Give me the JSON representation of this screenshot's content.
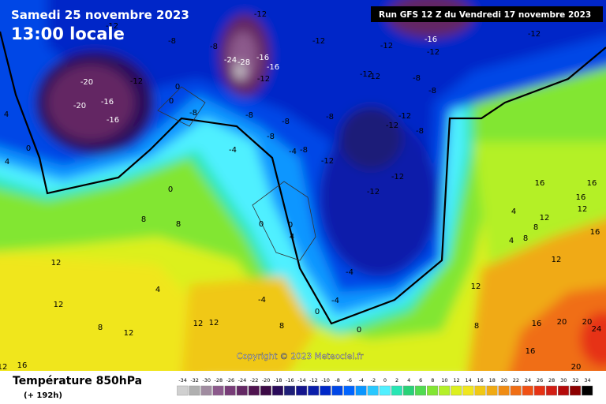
{
  "header": {
    "date": "Samedi 25 novembre 2023",
    "time": "13:00 locale",
    "run": "Run GFS 12 Z du Vendredi 17 novembre 2023"
  },
  "copyright": "Copyright © 2023 Meteociel.fr",
  "footer": {
    "title": "Température 850hPa",
    "lead": "(+ 192h)"
  },
  "legend": {
    "values": [
      -34,
      -32,
      -30,
      -28,
      -26,
      -24,
      -22,
      -20,
      -18,
      -16,
      -14,
      -12,
      -10,
      -8,
      -6,
      -4,
      -2,
      0,
      2,
      4,
      6,
      8,
      10,
      12,
      14,
      16,
      18,
      20,
      22,
      24,
      26,
      28,
      30,
      32,
      34
    ],
    "colors": [
      "#d0d0d0",
      "#b0b0b0",
      "#a08ca0",
      "#8c5a8c",
      "#783c78",
      "#642864",
      "#501450",
      "#3c0a46",
      "#2a0a5a",
      "#1e1e78",
      "#14148c",
      "#0a1eaa",
      "#0028c8",
      "#0046e6",
      "#0064ff",
      "#0a96ff",
      "#28c8ff",
      "#50f0ff",
      "#28e6b4",
      "#28d278",
      "#50dc50",
      "#82e632",
      "#b4f028",
      "#dcf01e",
      "#f0e61e",
      "#f0c814",
      "#f0aa14",
      "#f08c14",
      "#f06e14",
      "#f05014",
      "#e63214",
      "#d21e14",
      "#b40a0a",
      "#8c0000",
      "#000000"
    ]
  },
  "map_labels": [
    -12,
    -8,
    -8,
    -12,
    -12,
    -12,
    -16,
    -12,
    -12,
    -24,
    -28,
    -16,
    -16,
    -12,
    -20,
    -16,
    -20,
    -16,
    -12,
    0,
    0,
    -8,
    -12,
    -12,
    -8,
    -8,
    -12,
    -12,
    -8,
    -8,
    -8,
    -8,
    -4,
    -8,
    -12,
    -12,
    -12,
    -8,
    4,
    0,
    4,
    0,
    8,
    8,
    12,
    12,
    12,
    12,
    12,
    8,
    4,
    -4,
    -4,
    -4,
    0,
    0,
    8,
    8,
    12,
    12,
    16,
    16,
    16,
    12,
    16,
    20,
    20,
    20,
    16,
    16,
    24,
    8,
    4,
    4,
    8,
    12,
    12,
    16,
    0,
    0,
    4,
    -4
  ]
}
